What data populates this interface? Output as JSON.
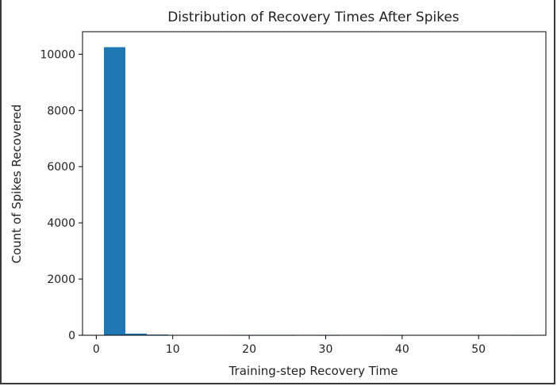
{
  "chart_data": {
    "type": "bar",
    "title": "Distribution of Recovery Times After Spikes",
    "xlabel": "Training-step Recovery Time",
    "ylabel": "Count of Spikes Recovered",
    "xlim": [
      -1.8,
      58.8
    ],
    "ylim": [
      0,
      10800
    ],
    "xticks": [
      0,
      10,
      20,
      30,
      40,
      50
    ],
    "yticks": [
      0,
      2000,
      4000,
      6000,
      8000,
      10000
    ],
    "bar_color": "#1f77b4",
    "bins": [
      {
        "x0": 1.0,
        "x1": 3.8,
        "value": 10250
      },
      {
        "x0": 3.8,
        "x1": 6.6,
        "value": 60
      },
      {
        "x0": 6.6,
        "x1": 9.4,
        "value": 25
      },
      {
        "x0": 9.4,
        "x1": 12.2,
        "value": 6
      },
      {
        "x0": 12.2,
        "x1": 15.0,
        "value": 3
      },
      {
        "x0": 15.0,
        "x1": 17.8,
        "value": 2
      },
      {
        "x0": 17.8,
        "x1": 20.6,
        "value": 1
      },
      {
        "x0": 20.6,
        "x1": 23.4,
        "value": 1
      },
      {
        "x0": 23.4,
        "x1": 26.2,
        "value": 1
      },
      {
        "x0": 26.2,
        "x1": 29.0,
        "value": 0
      },
      {
        "x0": 29.0,
        "x1": 31.8,
        "value": 1
      },
      {
        "x0": 31.8,
        "x1": 34.6,
        "value": 0
      },
      {
        "x0": 34.6,
        "x1": 37.4,
        "value": 0
      },
      {
        "x0": 37.4,
        "x1": 40.2,
        "value": 1
      },
      {
        "x0": 40.2,
        "x1": 43.0,
        "value": 0
      },
      {
        "x0": 43.0,
        "x1": 45.8,
        "value": 0
      },
      {
        "x0": 45.8,
        "x1": 48.6,
        "value": 0
      },
      {
        "x0": 48.6,
        "x1": 51.4,
        "value": 0
      },
      {
        "x0": 51.4,
        "x1": 54.2,
        "value": 0
      },
      {
        "x0": 54.2,
        "x1": 57.0,
        "value": 1
      }
    ]
  }
}
